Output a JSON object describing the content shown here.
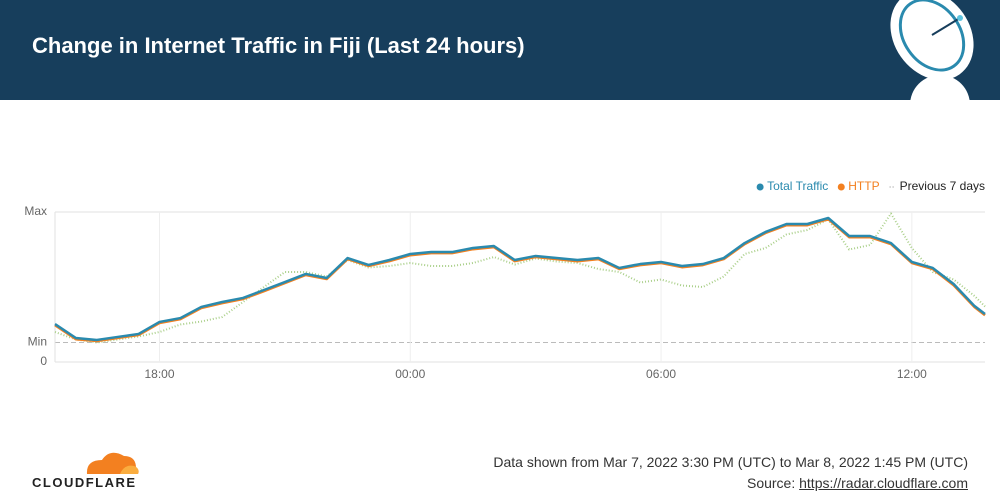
{
  "header": {
    "title": "Change in Internet Traffic in Fiji (Last 24 hours)"
  },
  "chart_data": {
    "type": "line",
    "x": [
      15.5,
      16,
      16.5,
      17,
      17.5,
      18,
      18.5,
      19,
      19.5,
      20,
      20.5,
      21,
      21.5,
      22,
      22.5,
      23,
      23.5,
      24,
      24.5,
      25,
      25.5,
      26,
      26.5,
      27,
      27.5,
      28,
      28.5,
      29,
      29.5,
      30,
      30.5,
      31,
      31.5,
      32,
      32.5,
      33,
      33.5,
      34,
      34.5,
      35,
      35.5,
      36,
      36.5,
      37,
      37.5,
      37.75
    ],
    "xlim": [
      15.5,
      37.75
    ],
    "xticks": [
      {
        "value": 18,
        "label": "18:00"
      },
      {
        "value": 24,
        "label": "00:00"
      },
      {
        "value": 30,
        "label": "06:00"
      },
      {
        "value": 36,
        "label": "12:00"
      }
    ],
    "ylim": [
      0,
      1
    ],
    "yticks": [
      0,
      {
        "value": 0.13,
        "label": "Min"
      },
      {
        "value": 1,
        "label": "Max"
      }
    ],
    "grid": true,
    "legend": "top-right",
    "series": [
      {
        "name": "Total Traffic",
        "color": "#2a8aae",
        "dash": "solid",
        "values": [
          0.253,
          0.16,
          0.147,
          0.167,
          0.187,
          0.267,
          0.293,
          0.367,
          0.4,
          0.427,
          0.48,
          0.533,
          0.587,
          0.56,
          0.693,
          0.647,
          0.68,
          0.72,
          0.733,
          0.733,
          0.76,
          0.773,
          0.68,
          0.707,
          0.693,
          0.68,
          0.693,
          0.627,
          0.653,
          0.667,
          0.64,
          0.653,
          0.693,
          0.793,
          0.867,
          0.92,
          0.92,
          0.96,
          0.84,
          0.84,
          0.793,
          0.667,
          0.627,
          0.52,
          0.373,
          0.32
        ]
      },
      {
        "name": "HTTP",
        "color": "#f38020",
        "dash": "solid",
        "values": [
          0.245,
          0.152,
          0.14,
          0.16,
          0.18,
          0.26,
          0.286,
          0.36,
          0.392,
          0.42,
          0.472,
          0.526,
          0.58,
          0.553,
          0.686,
          0.64,
          0.672,
          0.712,
          0.726,
          0.726,
          0.752,
          0.766,
          0.672,
          0.7,
          0.686,
          0.672,
          0.686,
          0.62,
          0.646,
          0.66,
          0.632,
          0.646,
          0.686,
          0.786,
          0.86,
          0.912,
          0.912,
          0.952,
          0.832,
          0.832,
          0.786,
          0.66,
          0.62,
          0.512,
          0.366,
          0.312
        ]
      },
      {
        "name": "Previous 7 days",
        "color": "#a9cf88",
        "dash": "dotted",
        "values": [
          0.2,
          0.15,
          0.13,
          0.15,
          0.17,
          0.2,
          0.25,
          0.27,
          0.3,
          0.4,
          0.5,
          0.6,
          0.6,
          0.57,
          0.68,
          0.63,
          0.64,
          0.66,
          0.64,
          0.64,
          0.66,
          0.7,
          0.65,
          0.69,
          0.67,
          0.66,
          0.62,
          0.6,
          0.53,
          0.55,
          0.51,
          0.5,
          0.57,
          0.72,
          0.76,
          0.85,
          0.88,
          0.95,
          0.75,
          0.78,
          0.99,
          0.76,
          0.6,
          0.55,
          0.44,
          0.37
        ]
      }
    ]
  },
  "footer": {
    "logo_text": "CLOUDFLARE",
    "range": "Data shown from Mar 7, 2022 3:30 PM (UTC) to Mar 8, 2022 1:45 PM (UTC)",
    "source_label": "Source:",
    "source_url": "https://radar.cloudflare.com"
  }
}
